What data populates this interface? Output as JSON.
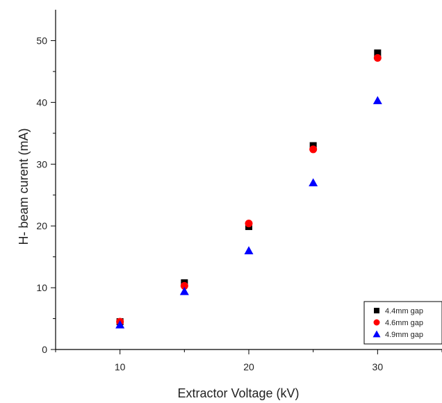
{
  "chart_data": {
    "type": "scatter",
    "xlabel": "Extractor Voltage (kV)",
    "ylabel": "H- beam curent (mA)",
    "xlim": [
      5,
      35
    ],
    "ylim": [
      0,
      55
    ],
    "x_ticks": [
      10,
      20,
      30
    ],
    "y_ticks": [
      0,
      10,
      20,
      30,
      40,
      50
    ],
    "grid": false,
    "legend_position": "bottom-right",
    "series": [
      {
        "name": "4.4mm gap",
        "marker": "square",
        "color": "#000000",
        "x": [
          10,
          15,
          20,
          25,
          30
        ],
        "y": [
          4.5,
          10.8,
          19.9,
          33.0,
          48.0
        ]
      },
      {
        "name": "4.6mm gap",
        "marker": "circle",
        "color": "#ff0000",
        "x": [
          10,
          15,
          20,
          25,
          30
        ],
        "y": [
          4.5,
          10.3,
          20.4,
          32.4,
          47.2
        ]
      },
      {
        "name": "4.9mm gap",
        "marker": "triangle",
        "color": "#0000ff",
        "x": [
          10,
          15,
          20,
          25,
          30
        ],
        "y": [
          4.0,
          9.4,
          16.0,
          27.0,
          40.3
        ]
      }
    ]
  }
}
